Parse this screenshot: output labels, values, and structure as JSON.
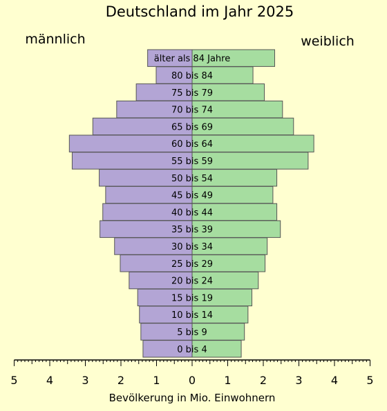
{
  "chart_data": {
    "type": "bar",
    "title": "Deutschland im Jahr 2025",
    "left_label": "männlich",
    "right_label": "weiblich",
    "xlabel": "Bevölkerung in Mio. Einwohnern",
    "xlim": [
      -5,
      5
    ],
    "x_ticks": [
      5,
      4,
      3,
      2,
      1,
      0,
      1,
      2,
      3,
      4,
      5
    ],
    "categories": [
      "0  bis  4",
      "5 bis 9",
      "10 bis 14",
      "15 bis 19",
      "20 bis 24",
      "25 bis 29",
      "30 bis 34",
      "35 bis 39",
      "40 bis 44",
      "45 bis 49",
      "50 bis 54",
      "55 bis 59",
      "60 bis 64",
      "65 bis 69",
      "70 bis 74",
      "75 bis 79",
      "80 bis 84",
      "älter als 84 Jahre"
    ],
    "series": [
      {
        "name": "männlich",
        "color": "#B3A5D5",
        "values": [
          1.38,
          1.44,
          1.48,
          1.53,
          1.77,
          2.02,
          2.18,
          2.59,
          2.51,
          2.43,
          2.61,
          3.37,
          3.45,
          2.79,
          2.12,
          1.57,
          1.01,
          1.25
        ]
      },
      {
        "name": "weiblich",
        "color": "#A6DDA0",
        "values": [
          1.38,
          1.47,
          1.57,
          1.68,
          1.86,
          2.05,
          2.11,
          2.48,
          2.38,
          2.27,
          2.38,
          3.26,
          3.42,
          2.85,
          2.54,
          2.03,
          1.71,
          2.32
        ]
      }
    ]
  }
}
